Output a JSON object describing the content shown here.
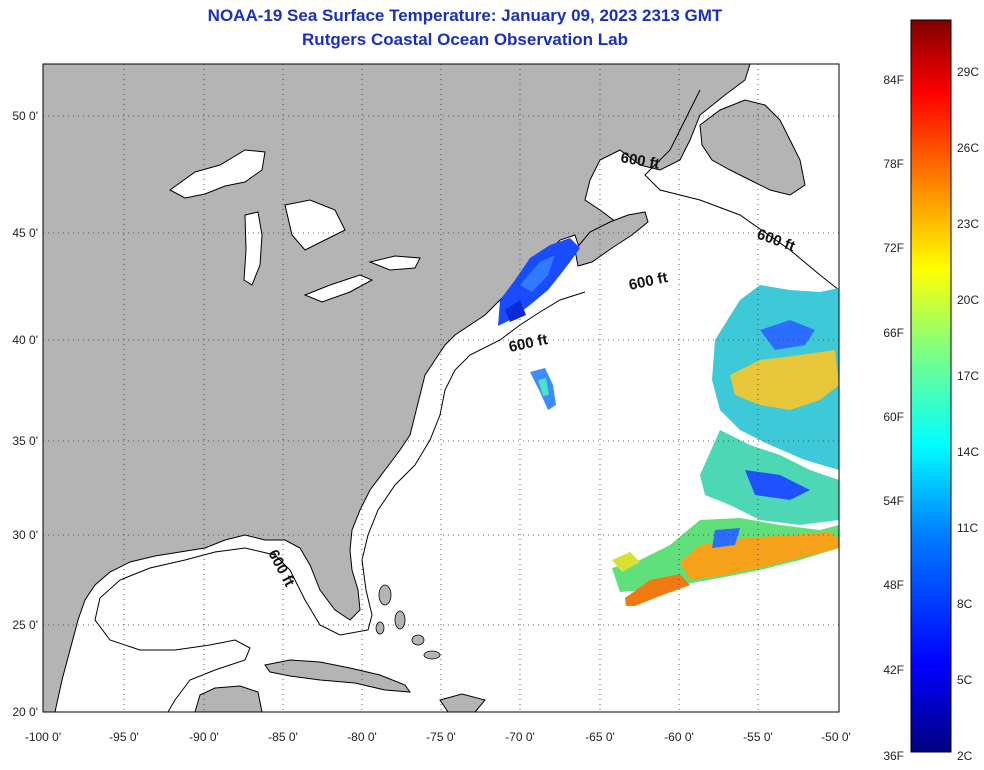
{
  "title": {
    "line1": "NOAA-19 Sea Surface Temperature:  January 09, 2023 2313 GMT",
    "line2": "Rutgers Coastal Ocean Observation Lab"
  },
  "axes": {
    "lon_ticks": [
      "-100 0'",
      "-95 0'",
      "-90 0'",
      "-85 0'",
      "-80 0'",
      "-75 0'",
      "-70 0'",
      "-65 0'",
      "-60 0'",
      "-55 0'",
      "-50 0'"
    ],
    "lat_ticks": [
      "50 0'",
      "45 0'",
      "40 0'",
      "35 0'",
      "30 0'",
      "25 0'",
      "20 0'"
    ]
  },
  "contour_labels": [
    "600 ft",
    "600 ft",
    "600 ft",
    "600 ft",
    "600 ft"
  ],
  "colorbar": {
    "fahrenheit_labels": [
      "84F",
      "78F",
      "72F",
      "66F",
      "60F",
      "54F",
      "48F",
      "42F",
      "36F"
    ],
    "celsius_labels": [
      "29C",
      "26C",
      "23C",
      "20C",
      "17C",
      "14C",
      "11C",
      "8C",
      "5C",
      "2C"
    ],
    "colors": [
      "#000080",
      "#0000ff",
      "#0080ff",
      "#00ffff",
      "#80ff80",
      "#ffff00",
      "#ff8000",
      "#ff0000",
      "#800000"
    ]
  },
  "colors": {
    "land": "#b4b4b4",
    "ocean": "#ffffff",
    "title": "#1a2fbf"
  }
}
